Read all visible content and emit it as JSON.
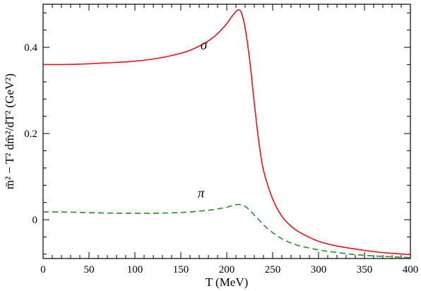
{
  "chart_data": {
    "type": "line",
    "xlabel": "T (MeV)",
    "ylabel": "m̄² − T² dm̄²/dT²  (GeV²)",
    "xlim": [
      0,
      400
    ],
    "ylim": [
      -0.09,
      0.5
    ],
    "x_ticks": [
      "0",
      "50",
      "100",
      "150",
      "200",
      "250",
      "300",
      "350",
      "400"
    ],
    "y_ticks": [
      "0",
      "0.2",
      "0.4"
    ],
    "grid": false,
    "series": [
      {
        "name": "σ",
        "color": "#e8101a",
        "dash": "solid",
        "x": [
          0,
          20,
          40,
          60,
          80,
          100,
          120,
          140,
          160,
          180,
          190,
          200,
          205,
          210,
          213,
          216,
          220,
          225,
          230,
          235,
          240,
          250,
          260,
          270,
          280,
          300,
          320,
          340,
          360,
          380,
          400
        ],
        "y": [
          0.36,
          0.36,
          0.361,
          0.363,
          0.365,
          0.368,
          0.373,
          0.381,
          0.393,
          0.415,
          0.432,
          0.455,
          0.47,
          0.483,
          0.487,
          0.48,
          0.445,
          0.37,
          0.27,
          0.18,
          0.115,
          0.048,
          0.008,
          -0.015,
          -0.03,
          -0.05,
          -0.061,
          -0.068,
          -0.074,
          -0.078,
          -0.081
        ]
      },
      {
        "name": "π",
        "color": "#2a8c2a",
        "dash": "dashed",
        "x": [
          0,
          20,
          40,
          60,
          80,
          100,
          120,
          140,
          160,
          180,
          190,
          200,
          205,
          210,
          215,
          220,
          225,
          230,
          235,
          240,
          250,
          260,
          270,
          280,
          300,
          320,
          340,
          360,
          380,
          400
        ],
        "y": [
          0.018,
          0.018,
          0.017,
          0.016,
          0.015,
          0.015,
          0.015,
          0.016,
          0.018,
          0.022,
          0.025,
          0.029,
          0.032,
          0.035,
          0.035,
          0.031,
          0.022,
          0.011,
          0.0,
          -0.012,
          -0.03,
          -0.044,
          -0.054,
          -0.061,
          -0.07,
          -0.076,
          -0.081,
          -0.084,
          -0.086,
          -0.088
        ]
      }
    ],
    "annotations": [
      {
        "text": "σ",
        "x": 175,
        "y": 0.395
      },
      {
        "text": "π",
        "x": 172,
        "y": 0.052
      }
    ]
  }
}
